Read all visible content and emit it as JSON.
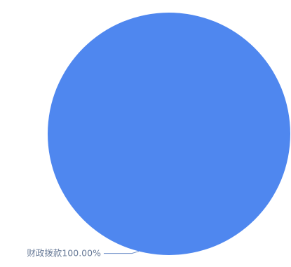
{
  "chart_data": {
    "type": "pie",
    "categories": [
      "财政拨款"
    ],
    "values": [
      100
    ],
    "value_labels": [
      "100.00%"
    ],
    "colors": [
      "#4f87ef"
    ]
  }
}
